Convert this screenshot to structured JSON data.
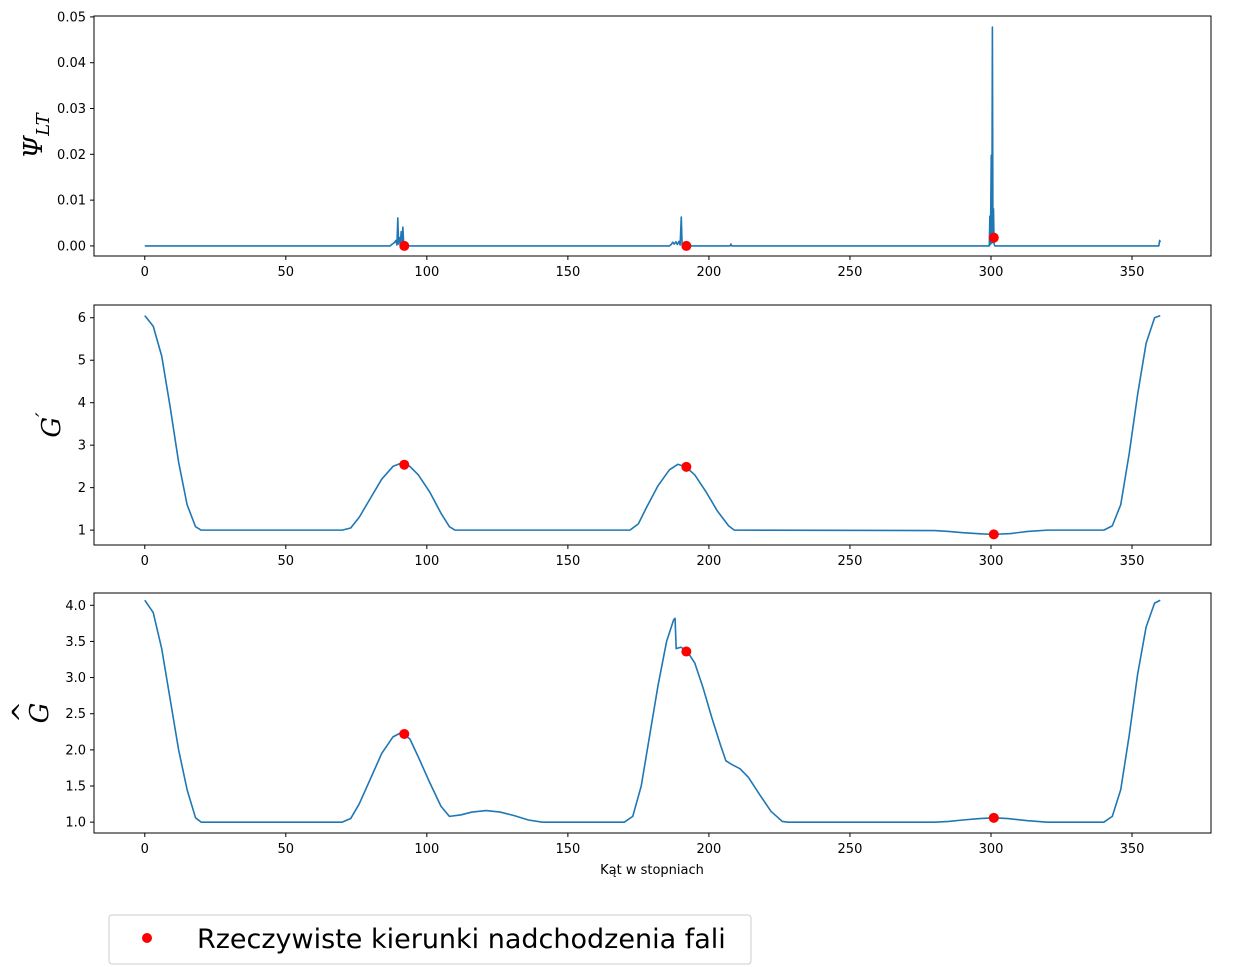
{
  "colors": {
    "line": "#1f77b4",
    "marker": "#ff0000",
    "axes": "#000000",
    "legend_border": "#cccccc"
  },
  "chart_data": [
    {
      "type": "line",
      "name": "psi-lt",
      "ylabel": "Ψ_LT",
      "ylabel_main": "Ψ",
      "ylabel_sub": "LT",
      "xlabel": "",
      "xlim": [
        -18,
        378
      ],
      "ylim": [
        -0.0022,
        0.0502
      ],
      "xticks": [
        0,
        50,
        100,
        150,
        200,
        250,
        300,
        350
      ],
      "xtick_labels": [
        "0",
        "50",
        "100",
        "150",
        "200",
        "250",
        "300",
        "350"
      ],
      "yticks": [
        0,
        0.01,
        0.02,
        0.03,
        0.04,
        0.05
      ],
      "ytick_labels": [
        "0.00",
        "0.01",
        "0.02",
        "0.03",
        "0.04",
        "0.05"
      ],
      "series": [
        {
          "name": "Ψ_LT",
          "points": [
            [
              0,
              0
            ],
            [
              87,
              0
            ],
            [
              87.5,
              0.0003
            ],
            [
              88,
              0.0005
            ],
            [
              88.6,
              0.0008
            ],
            [
              89,
              0.0012
            ],
            [
              89.4,
              0.0002
            ],
            [
              89.7,
              0.0061
            ],
            [
              90,
              0.0004
            ],
            [
              90.3,
              0.0018
            ],
            [
              90.6,
              0.0007
            ],
            [
              90.9,
              0.0031
            ],
            [
              91.2,
              0.0009
            ],
            [
              91.5,
              0.0041
            ],
            [
              91.8,
              0.0003
            ],
            [
              92.3,
              0.0001
            ],
            [
              93,
              0
            ],
            [
              186,
              0
            ],
            [
              186.6,
              0.0003
            ],
            [
              187.2,
              0.0008
            ],
            [
              187.7,
              0.0004
            ],
            [
              188.3,
              0.0009
            ],
            [
              188.8,
              0.0003
            ],
            [
              189.4,
              0.001
            ],
            [
              189.8,
              0.0002
            ],
            [
              190.2,
              0.0063
            ],
            [
              190.5,
              0.0002
            ],
            [
              191,
              0
            ],
            [
              207.5,
              0
            ],
            [
              207.8,
              0.0004
            ],
            [
              208.1,
              0
            ],
            [
              299.4,
              0
            ],
            [
              299.6,
              0.0065
            ],
            [
              299.8,
              0.0003
            ],
            [
              300.1,
              0.0198
            ],
            [
              300.3,
              0.0006
            ],
            [
              300.5,
              0.0478
            ],
            [
              300.7,
              0.0008
            ],
            [
              300.9,
              0.0081
            ],
            [
              301.1,
              0.0004
            ],
            [
              301.4,
              0
            ],
            [
              359.5,
              0
            ],
            [
              359.8,
              0.0012
            ],
            [
              360,
              0.0008
            ]
          ]
        }
      ],
      "markers": {
        "name": "Rzeczywiste kierunki nadchodzenia fali",
        "x": [
          92,
          192,
          301
        ],
        "y": [
          0,
          0,
          0.0018
        ]
      }
    },
    {
      "type": "line",
      "name": "g-prime",
      "ylabel": "G′",
      "ylabel_main": "G",
      "ylabel_sup": "′",
      "xlabel": "",
      "xlim": [
        -18,
        378
      ],
      "ylim": [
        0.65,
        6.3
      ],
      "xticks": [
        0,
        50,
        100,
        150,
        200,
        250,
        300,
        350
      ],
      "xtick_labels": [
        "0",
        "50",
        "100",
        "150",
        "200",
        "250",
        "300",
        "350"
      ],
      "yticks": [
        1,
        2,
        3,
        4,
        5,
        6
      ],
      "ytick_labels": [
        "1",
        "2",
        "3",
        "4",
        "5",
        "6"
      ],
      "series": [
        {
          "name": "G′",
          "points": [
            [
              0,
              6.05
            ],
            [
              3,
              5.8
            ],
            [
              6,
              5.1
            ],
            [
              9,
              3.9
            ],
            [
              12,
              2.6
            ],
            [
              15,
              1.6
            ],
            [
              18,
              1.08
            ],
            [
              20,
              1
            ],
            [
              70,
              1
            ],
            [
              73,
              1.05
            ],
            [
              76,
              1.3
            ],
            [
              80,
              1.75
            ],
            [
              84,
              2.2
            ],
            [
              88,
              2.5
            ],
            [
              91,
              2.58
            ],
            [
              94,
              2.5
            ],
            [
              97,
              2.3
            ],
            [
              101,
              1.9
            ],
            [
              105,
              1.4
            ],
            [
              108,
              1.08
            ],
            [
              110,
              1
            ],
            [
              172,
              1
            ],
            [
              175,
              1.15
            ],
            [
              178,
              1.55
            ],
            [
              182,
              2.05
            ],
            [
              186,
              2.42
            ],
            [
              189,
              2.55
            ],
            [
              192,
              2.48
            ],
            [
              195,
              2.3
            ],
            [
              199,
              1.9
            ],
            [
              203,
              1.45
            ],
            [
              207,
              1.1
            ],
            [
              209,
              1
            ],
            [
              280,
              0.99
            ],
            [
              285,
              0.97
            ],
            [
              290,
              0.94
            ],
            [
              297,
              0.91
            ],
            [
              301,
              0.9
            ],
            [
              307,
              0.92
            ],
            [
              313,
              0.97
            ],
            [
              320,
              1
            ],
            [
              340,
              1
            ],
            [
              343,
              1.1
            ],
            [
              346,
              1.6
            ],
            [
              349,
              2.8
            ],
            [
              352,
              4.2
            ],
            [
              355,
              5.4
            ],
            [
              358,
              6
            ],
            [
              360,
              6.05
            ]
          ]
        }
      ],
      "markers": {
        "name": "Rzeczywiste kierunki nadchodzenia fali",
        "x": [
          92,
          192,
          301
        ],
        "y": [
          2.54,
          2.49,
          0.9
        ]
      }
    },
    {
      "type": "line",
      "name": "g-hat",
      "ylabel": "Ĝ",
      "ylabel_main": "G",
      "ylabel_hat": "^",
      "xlabel": "Kąt w stopniach",
      "xlim": [
        -18,
        378
      ],
      "ylim": [
        0.85,
        4.17
      ],
      "xticks": [
        0,
        50,
        100,
        150,
        200,
        250,
        300,
        350
      ],
      "xtick_labels": [
        "0",
        "50",
        "100",
        "150",
        "200",
        "250",
        "300",
        "350"
      ],
      "yticks": [
        1.0,
        1.5,
        2.0,
        2.5,
        3.0,
        3.5,
        4.0
      ],
      "ytick_labels": [
        "1.0",
        "1.5",
        "2.0",
        "2.5",
        "3.0",
        "3.5",
        "4.0"
      ],
      "series": [
        {
          "name": "Ĝ",
          "points": [
            [
              0,
              4.07
            ],
            [
              3,
              3.9
            ],
            [
              6,
              3.4
            ],
            [
              9,
              2.7
            ],
            [
              12,
              2
            ],
            [
              15,
              1.45
            ],
            [
              18,
              1.06
            ],
            [
              20,
              1
            ],
            [
              70,
              1
            ],
            [
              73,
              1.05
            ],
            [
              76,
              1.25
            ],
            [
              80,
              1.6
            ],
            [
              84,
              1.95
            ],
            [
              88,
              2.18
            ],
            [
              91,
              2.24
            ],
            [
              94,
              2.15
            ],
            [
              97,
              1.9
            ],
            [
              101,
              1.55
            ],
            [
              105,
              1.22
            ],
            [
              108,
              1.08
            ],
            [
              112,
              1.1
            ],
            [
              116,
              1.14
            ],
            [
              121,
              1.16
            ],
            [
              126,
              1.14
            ],
            [
              131,
              1.09
            ],
            [
              136,
              1.03
            ],
            [
              141,
              1
            ],
            [
              170,
              1
            ],
            [
              173,
              1.08
            ],
            [
              176,
              1.5
            ],
            [
              179,
              2.2
            ],
            [
              182,
              2.9
            ],
            [
              185,
              3.5
            ],
            [
              187.5,
              3.8
            ],
            [
              188,
              3.82
            ],
            [
              188.4,
              3.4
            ],
            [
              190,
              3.42
            ],
            [
              192,
              3.38
            ],
            [
              195,
              3.2
            ],
            [
              198,
              2.85
            ],
            [
              201,
              2.45
            ],
            [
              204,
              2.08
            ],
            [
              206,
              1.85
            ],
            [
              208,
              1.8
            ],
            [
              211,
              1.74
            ],
            [
              214,
              1.62
            ],
            [
              218,
              1.38
            ],
            [
              222,
              1.15
            ],
            [
              226,
              1.01
            ],
            [
              228,
              1
            ],
            [
              280,
              1
            ],
            [
              285,
              1.01
            ],
            [
              290,
              1.03
            ],
            [
              296,
              1.05
            ],
            [
              301,
              1.06
            ],
            [
              306,
              1.05
            ],
            [
              313,
              1.02
            ],
            [
              320,
              1
            ],
            [
              340,
              1
            ],
            [
              343,
              1.08
            ],
            [
              346,
              1.45
            ],
            [
              349,
              2.2
            ],
            [
              352,
              3.05
            ],
            [
              355,
              3.7
            ],
            [
              358,
              4.03
            ],
            [
              360,
              4.07
            ]
          ]
        }
      ],
      "markers": {
        "name": "Rzeczywiste kierunki nadchodzenia fali",
        "x": [
          92,
          192,
          301
        ],
        "y": [
          2.22,
          3.36,
          1.06
        ]
      }
    }
  ],
  "legend": {
    "label": "Rzeczywiste kierunki nadchodzenia fali",
    "placement": "bottom-left"
  }
}
